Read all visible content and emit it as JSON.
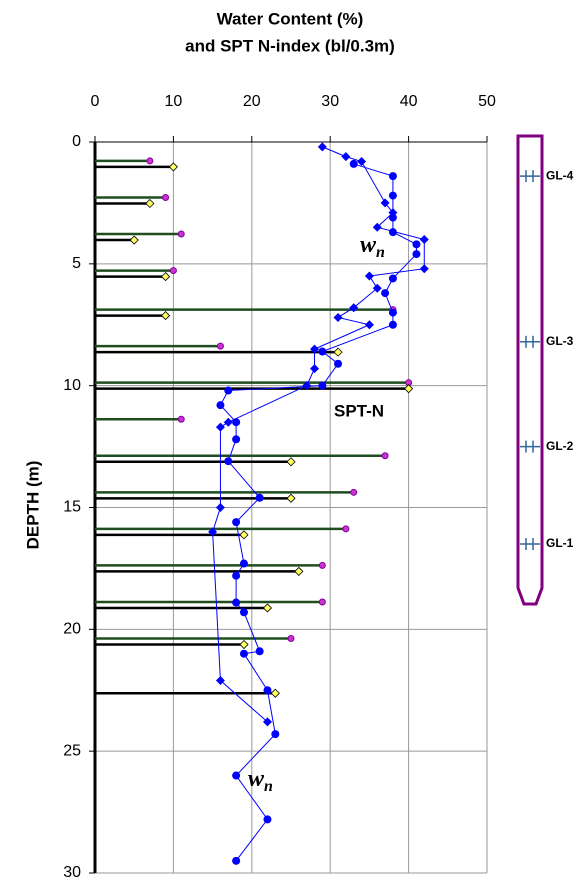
{
  "chart_data": {
    "type": "profile",
    "title": [
      "Water Content  (%)",
      "and SPT  N-index (bl/0.3m)"
    ],
    "y_label": "DEPTH  (m)",
    "xlim": [
      0,
      50
    ],
    "xticks": [
      0,
      10,
      20,
      30,
      40,
      50
    ],
    "ylim": [
      0,
      30
    ],
    "yticks": [
      0,
      5,
      10,
      15,
      20,
      25,
      30
    ],
    "y_inverted": true,
    "grid": true,
    "spt": {
      "depths": [
        0.9,
        2.4,
        3.9,
        5.4,
        7.0,
        8.5,
        10.0,
        11.5,
        13.0,
        14.5,
        16.0,
        17.5,
        19.0,
        20.5,
        22.5
      ],
      "series": [
        {
          "color": "#cc33cc",
          "bar_color": "#1f4d1f",
          "values": [
            7,
            9,
            11,
            10,
            38,
            16,
            40,
            11,
            37,
            33,
            32,
            29,
            29,
            25,
            null
          ]
        },
        {
          "color": "#ffff66",
          "bar_color": "#000000",
          "values": [
            10,
            7,
            5,
            9,
            9,
            31,
            40,
            null,
            25,
            25,
            19,
            26,
            22,
            19,
            23
          ]
        }
      ]
    },
    "series": [
      {
        "marker": "circle",
        "color": "#0000ff",
        "x": [
          33,
          38,
          38,
          38,
          38,
          41,
          41,
          38,
          37,
          38,
          38,
          29,
          31,
          29,
          17,
          16,
          18,
          18,
          17,
          21,
          18,
          19,
          18,
          18,
          19,
          21,
          19,
          22,
          23,
          18,
          22,
          18
        ],
        "y": [
          0.9,
          1.4,
          2.2,
          3.1,
          3.7,
          4.2,
          4.6,
          5.6,
          6.2,
          7.0,
          7.5,
          8.6,
          9.1,
          10.0,
          10.2,
          10.8,
          11.5,
          12.2,
          13.1,
          14.6,
          15.6,
          17.3,
          17.8,
          18.9,
          19.3,
          20.9,
          21.0,
          22.5,
          24.3,
          26.0,
          27.8,
          29.5
        ]
      },
      {
        "marker": "diamond",
        "color": "#0000ff",
        "x": [
          29,
          32,
          34,
          37,
          38,
          36,
          42,
          42,
          35,
          36,
          33,
          31,
          35,
          28,
          28,
          27,
          17,
          16,
          16,
          15,
          16,
          22
        ],
        "y": [
          0.2,
          0.6,
          0.8,
          2.5,
          2.9,
          3.5,
          4.0,
          5.2,
          5.5,
          6.0,
          6.8,
          7.2,
          7.5,
          8.5,
          9.3,
          10.0,
          11.5,
          11.7,
          15.0,
          16.0,
          22.1,
          23.8
        ]
      }
    ],
    "annotations": [
      {
        "text": "w",
        "sub": "n"
      },
      {
        "text": "SPT-N"
      },
      {
        "text": "w",
        "sub": "n"
      }
    ],
    "piezometers": [
      {
        "label": "GL-4",
        "depth": 1.4
      },
      {
        "label": "GL-3",
        "depth": 8.2
      },
      {
        "label": "GL-2",
        "depth": 12.5
      },
      {
        "label": "GL-1",
        "depth": 16.5
      }
    ]
  }
}
